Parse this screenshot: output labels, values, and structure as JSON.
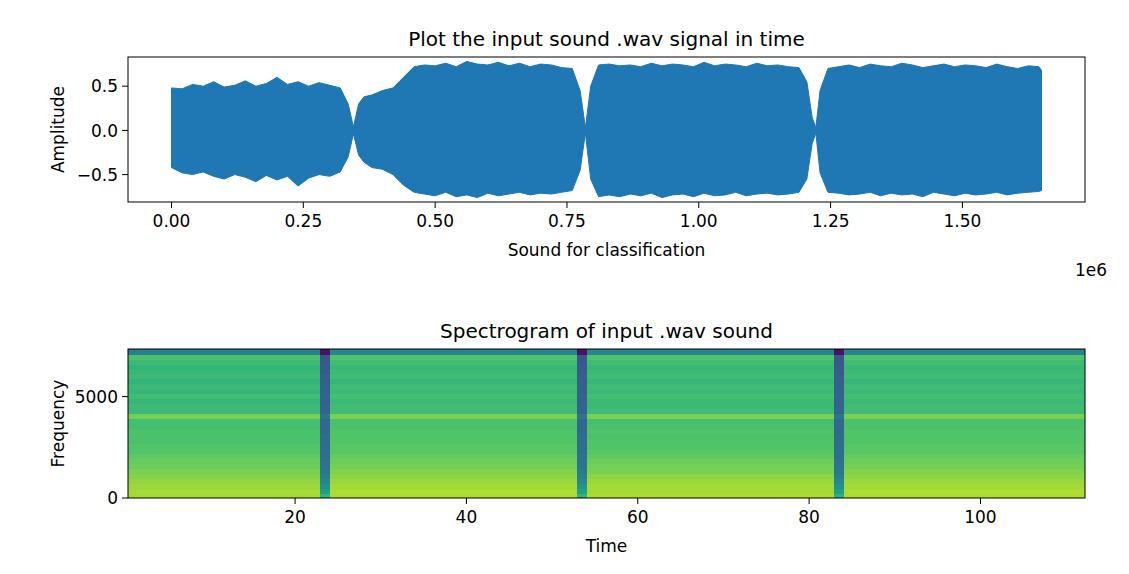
{
  "chart_data": [
    {
      "type": "area",
      "title": "Plot the input sound .wav signal in time",
      "x_label": "Sound for classification",
      "y_label": "Amplitude",
      "x_offset_text": "1e6",
      "color": "#1f77b4",
      "xlim": [
        -82500,
        1732500
      ],
      "ylim": [
        -0.81,
        0.83
      ],
      "xticks": [
        {
          "value": 0,
          "label": "0.00"
        },
        {
          "value": 250000,
          "label": "0.25"
        },
        {
          "value": 500000,
          "label": "0.50"
        },
        {
          "value": 750000,
          "label": "0.75"
        },
        {
          "value": 1000000,
          "label": "1.00"
        },
        {
          "value": 1250000,
          "label": "1.25"
        },
        {
          "value": 1500000,
          "label": "1.50"
        }
      ],
      "yticks": [
        {
          "value": -0.5,
          "label": "−0.5"
        },
        {
          "value": 0,
          "label": "0.0"
        },
        0.5
      ],
      "x": [
        0,
        20000,
        40000,
        60000,
        80000,
        100000,
        120000,
        140000,
        160000,
        180000,
        200000,
        220000,
        240000,
        260000,
        280000,
        300000,
        320000,
        335000,
        345000,
        355000,
        365000,
        380000,
        400000,
        420000,
        440000,
        460000,
        480000,
        500000,
        520000,
        540000,
        560000,
        580000,
        600000,
        620000,
        640000,
        660000,
        680000,
        700000,
        720000,
        740000,
        760000,
        775000,
        785000,
        795000,
        810000,
        830000,
        850000,
        870000,
        890000,
        910000,
        930000,
        950000,
        970000,
        990000,
        1010000,
        1030000,
        1050000,
        1070000,
        1090000,
        1110000,
        1130000,
        1150000,
        1170000,
        1190000,
        1205000,
        1215000,
        1222000,
        1230000,
        1245000,
        1265000,
        1285000,
        1305000,
        1325000,
        1345000,
        1365000,
        1385000,
        1405000,
        1425000,
        1445000,
        1465000,
        1485000,
        1505000,
        1525000,
        1545000,
        1565000,
        1585000,
        1605000,
        1625000,
        1645000,
        1650000
      ],
      "upper": [
        0.48,
        0.47,
        0.52,
        0.5,
        0.55,
        0.49,
        0.51,
        0.56,
        0.5,
        0.53,
        0.6,
        0.52,
        0.55,
        0.5,
        0.54,
        0.51,
        0.48,
        0.3,
        0.04,
        0.3,
        0.38,
        0.4,
        0.45,
        0.48,
        0.6,
        0.72,
        0.74,
        0.73,
        0.76,
        0.72,
        0.78,
        0.75,
        0.74,
        0.77,
        0.73,
        0.76,
        0.72,
        0.75,
        0.74,
        0.71,
        0.7,
        0.45,
        0.03,
        0.5,
        0.74,
        0.75,
        0.73,
        0.74,
        0.72,
        0.76,
        0.73,
        0.75,
        0.74,
        0.72,
        0.77,
        0.73,
        0.75,
        0.74,
        0.72,
        0.76,
        0.73,
        0.74,
        0.72,
        0.71,
        0.55,
        0.15,
        0.03,
        0.45,
        0.7,
        0.72,
        0.74,
        0.71,
        0.75,
        0.73,
        0.72,
        0.76,
        0.74,
        0.71,
        0.73,
        0.75,
        0.72,
        0.74,
        0.73,
        0.71,
        0.75,
        0.72,
        0.7,
        0.73,
        0.72,
        0.68
      ],
      "lower": [
        -0.42,
        -0.48,
        -0.5,
        -0.47,
        -0.52,
        -0.55,
        -0.5,
        -0.53,
        -0.58,
        -0.51,
        -0.56,
        -0.52,
        -0.63,
        -0.54,
        -0.5,
        -0.52,
        -0.47,
        -0.3,
        -0.04,
        -0.28,
        -0.36,
        -0.42,
        -0.44,
        -0.5,
        -0.62,
        -0.7,
        -0.72,
        -0.74,
        -0.7,
        -0.75,
        -0.73,
        -0.76,
        -0.71,
        -0.74,
        -0.72,
        -0.7,
        -0.73,
        -0.71,
        -0.72,
        -0.7,
        -0.68,
        -0.45,
        -0.03,
        -0.55,
        -0.75,
        -0.73,
        -0.75,
        -0.72,
        -0.74,
        -0.71,
        -0.76,
        -0.73,
        -0.72,
        -0.75,
        -0.71,
        -0.74,
        -0.73,
        -0.7,
        -0.74,
        -0.72,
        -0.71,
        -0.73,
        -0.72,
        -0.7,
        -0.55,
        -0.15,
        -0.03,
        -0.48,
        -0.7,
        -0.71,
        -0.73,
        -0.72,
        -0.7,
        -0.74,
        -0.71,
        -0.73,
        -0.72,
        -0.75,
        -0.7,
        -0.72,
        -0.74,
        -0.71,
        -0.73,
        -0.72,
        -0.7,
        -0.73,
        -0.71,
        -0.7,
        -0.69,
        -0.68
      ]
    },
    {
      "type": "heatmap",
      "title": "Spectrogram of input .wav sound",
      "x_label": "Time",
      "y_label": "Frequency",
      "xlim": [
        0.5,
        112.2
      ],
      "ylim": [
        0,
        7350
      ],
      "xticks": [
        20,
        40,
        60,
        80,
        100
      ],
      "yticks": [
        0,
        5000
      ],
      "zlim": [
        -120,
        -40
      ],
      "x_edges": [
        0.5,
        22.9,
        24.1,
        52.9,
        54.1,
        82.9,
        84.1,
        112.2
      ],
      "y_edges": [
        0,
        245,
        490,
        735,
        980,
        1225,
        1470,
        1715,
        1960,
        2205,
        2450,
        2695,
        2940,
        3185,
        3430,
        3675,
        3920,
        4165,
        4410,
        4655,
        4900,
        5145,
        5390,
        5635,
        5880,
        6125,
        6370,
        6615,
        6860,
        7105,
        7350
      ],
      "cells": [
        [
          -51,
          -68,
          -50,
          -68,
          -50,
          -69,
          -50
        ],
        [
          -51,
          -76,
          -50,
          -75,
          -51,
          -76,
          -50
        ],
        [
          -52,
          -80,
          -51,
          -79,
          -51,
          -80,
          -51
        ],
        [
          -53,
          -84,
          -52,
          -83,
          -52,
          -84,
          -52
        ],
        [
          -55,
          -86,
          -54,
          -85,
          -54,
          -86,
          -54
        ],
        [
          -56,
          -88,
          -55,
          -87,
          -56,
          -88,
          -55
        ],
        [
          -58,
          -90,
          -57,
          -89,
          -57,
          -90,
          -57
        ],
        [
          -59,
          -90,
          -58,
          -90,
          -58,
          -90,
          -58
        ],
        [
          -60,
          -91,
          -59,
          -90,
          -60,
          -91,
          -59
        ],
        [
          -62,
          -91,
          -61,
          -91,
          -61,
          -91,
          -61
        ],
        [
          -62,
          -92,
          -61,
          -91,
          -62,
          -92,
          -61
        ],
        [
          -63,
          -92,
          -62,
          -92,
          -62,
          -92,
          -62
        ],
        [
          -63,
          -92,
          -62,
          -92,
          -63,
          -92,
          -62
        ],
        [
          -63,
          -93,
          -62,
          -93,
          -62,
          -93,
          -62
        ],
        [
          -64,
          -93,
          -63,
          -93,
          -63,
          -93,
          -63
        ],
        [
          -64,
          -93,
          -63,
          -93,
          -64,
          -93,
          -63
        ],
        [
          -57,
          -89,
          -56,
          -89,
          -56,
          -89,
          -56
        ],
        [
          -66,
          -94,
          -65,
          -94,
          -65,
          -94,
          -65
        ],
        [
          -66,
          -94,
          -65,
          -94,
          -66,
          -94,
          -65
        ],
        [
          -67,
          -95,
          -66,
          -95,
          -66,
          -95,
          -66
        ],
        [
          -65,
          -94,
          -64,
          -94,
          -64,
          -94,
          -64
        ],
        [
          -67,
          -95,
          -66,
          -95,
          -66,
          -95,
          -66
        ],
        [
          -66,
          -95,
          -65,
          -95,
          -65,
          -95,
          -65
        ],
        [
          -68,
          -96,
          -67,
          -96,
          -67,
          -96,
          -67
        ],
        [
          -66,
          -96,
          -65,
          -96,
          -65,
          -96,
          -65
        ],
        [
          -67,
          -97,
          -66,
          -97,
          -66,
          -97,
          -66
        ],
        [
          -68,
          -97,
          -67,
          -97,
          -67,
          -97,
          -67
        ],
        [
          -66,
          -98,
          -65,
          -98,
          -65,
          -98,
          -65
        ],
        [
          -63,
          -99,
          -62,
          -99,
          -62,
          -99,
          -62
        ],
        [
          -85,
          -116,
          -84,
          -116,
          -84,
          -116,
          -84
        ]
      ]
    }
  ]
}
